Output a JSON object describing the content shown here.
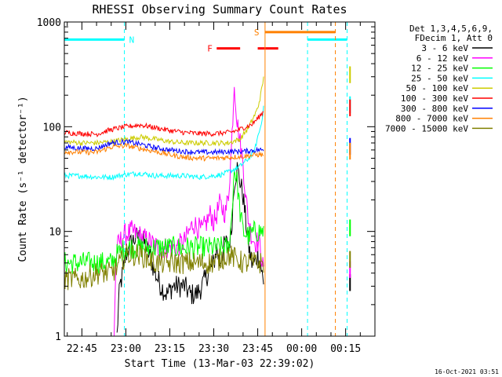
{
  "chart_data": {
    "type": "line",
    "title": "RHESSI Observing Summary Count Rates",
    "xlabel": "Start Time (13-Mar-03 22:39:02)",
    "ylabel": "Count Rate (s⁻¹ detector⁻¹)",
    "y_scale": "log",
    "ylim": [
      1,
      1000
    ],
    "xlim_minutes": [
      -6,
      100
    ],
    "x_ticks": [
      {
        "t": 0,
        "label": "22:45"
      },
      {
        "t": 15,
        "label": "23:00"
      },
      {
        "t": 30,
        "label": "23:15"
      },
      {
        "t": 45,
        "label": "23:30"
      },
      {
        "t": 60,
        "label": "23:45"
      },
      {
        "t": 75,
        "label": "00:00"
      },
      {
        "t": 90,
        "label": "00:15"
      }
    ],
    "y_ticks": [
      {
        "v": 1,
        "label": "1"
      },
      {
        "v": 10,
        "label": "10"
      },
      {
        "v": 100,
        "label": "100"
      },
      {
        "v": 1000,
        "label": "1000"
      }
    ],
    "legend_header": [
      "Det 1,3,4,5,6,9,",
      "FDecim 1, Att 0"
    ],
    "series": [
      {
        "name": "3 - 6 keV",
        "color": "#000000",
        "points": [
          [
            12,
            1
          ],
          [
            12.5,
            2
          ],
          [
            13,
            3
          ],
          [
            14,
            4
          ],
          [
            15,
            6
          ],
          [
            17,
            8
          ],
          [
            19,
            9
          ],
          [
            21,
            8
          ],
          [
            23,
            6
          ],
          [
            25,
            4
          ],
          [
            27,
            3
          ],
          [
            29,
            2.5
          ],
          [
            31,
            3
          ],
          [
            33,
            3
          ],
          [
            35,
            3
          ],
          [
            37,
            2.5
          ],
          [
            39,
            2.5
          ],
          [
            41,
            3
          ],
          [
            43,
            4
          ],
          [
            45,
            5
          ],
          [
            46,
            7
          ],
          [
            47,
            5
          ],
          [
            49,
            8
          ],
          [
            50,
            7
          ],
          [
            51,
            10
          ],
          [
            52,
            30
          ],
          [
            53,
            40
          ],
          [
            54,
            30
          ],
          [
            55,
            22
          ],
          [
            56,
            12
          ],
          [
            57,
            7
          ],
          [
            58,
            5
          ],
          [
            59,
            5
          ],
          [
            60,
            6
          ],
          [
            61,
            5
          ],
          [
            62,
            3
          ]
        ]
      },
      {
        "name": "6 - 12 keV",
        "color": "#ff00ff",
        "points": [
          [
            11,
            1
          ],
          [
            11.5,
            4
          ],
          [
            12,
            7
          ],
          [
            14,
            9
          ],
          [
            17,
            10
          ],
          [
            20,
            9
          ],
          [
            23,
            8
          ],
          [
            26,
            7
          ],
          [
            29,
            7
          ],
          [
            32,
            7
          ],
          [
            35,
            8
          ],
          [
            38,
            12
          ],
          [
            41,
            10
          ],
          [
            43,
            13
          ],
          [
            44,
            15
          ],
          [
            45,
            12
          ],
          [
            47,
            18
          ],
          [
            49,
            15
          ],
          [
            50,
            22
          ],
          [
            51,
            60
          ],
          [
            52,
            270
          ],
          [
            53,
            110
          ],
          [
            54,
            70
          ],
          [
            55,
            45
          ],
          [
            56,
            20
          ],
          [
            57,
            12
          ],
          [
            58,
            9
          ],
          [
            59,
            8
          ],
          [
            60,
            8
          ],
          [
            61,
            7
          ],
          [
            62,
            4
          ]
        ]
      },
      {
        "name": "12 - 25 keV",
        "color": "#00ff00",
        "points": [
          [
            -6,
            5
          ],
          [
            0,
            5
          ],
          [
            5,
            5
          ],
          [
            10,
            5
          ],
          [
            12,
            6
          ],
          [
            15,
            7
          ],
          [
            20,
            7
          ],
          [
            25,
            7
          ],
          [
            30,
            7
          ],
          [
            35,
            7
          ],
          [
            40,
            7
          ],
          [
            45,
            7
          ],
          [
            50,
            7
          ],
          [
            51,
            12
          ],
          [
            52,
            40
          ],
          [
            53,
            30
          ],
          [
            54,
            15
          ],
          [
            55,
            10
          ],
          [
            57,
            9
          ],
          [
            59,
            10
          ],
          [
            61,
            10
          ],
          [
            62,
            10
          ]
        ]
      },
      {
        "name": "25 - 50 keV",
        "color": "#00ffff",
        "points": [
          [
            -6,
            34
          ],
          [
            0,
            34
          ],
          [
            5,
            33
          ],
          [
            10,
            33
          ],
          [
            15,
            35
          ],
          [
            20,
            36
          ],
          [
            25,
            34
          ],
          [
            30,
            34
          ],
          [
            35,
            34
          ],
          [
            40,
            33
          ],
          [
            45,
            34
          ],
          [
            48,
            35
          ],
          [
            51,
            38
          ],
          [
            54,
            42
          ],
          [
            57,
            50
          ],
          [
            59,
            60
          ],
          [
            60,
            80
          ],
          [
            61,
            100
          ],
          [
            62,
            150
          ]
        ]
      },
      {
        "name": "50 - 100 keV",
        "color": "#cccc00",
        "points": [
          [
            -6,
            72
          ],
          [
            0,
            70
          ],
          [
            5,
            70
          ],
          [
            10,
            72
          ],
          [
            15,
            76
          ],
          [
            20,
            80
          ],
          [
            25,
            76
          ],
          [
            30,
            72
          ],
          [
            35,
            70
          ],
          [
            40,
            70
          ],
          [
            45,
            70
          ],
          [
            50,
            70
          ],
          [
            54,
            76
          ],
          [
            57,
            100
          ],
          [
            59,
            130
          ],
          [
            60,
            150
          ],
          [
            61,
            200
          ],
          [
            62,
            290
          ]
        ]
      },
      {
        "name": "100 - 300 keV",
        "color": "#ff0000",
        "points": [
          [
            -6,
            88
          ],
          [
            0,
            86
          ],
          [
            5,
            85
          ],
          [
            10,
            94
          ],
          [
            15,
            100
          ],
          [
            20,
            104
          ],
          [
            25,
            98
          ],
          [
            30,
            92
          ],
          [
            35,
            88
          ],
          [
            40,
            86
          ],
          [
            45,
            86
          ],
          [
            50,
            88
          ],
          [
            53,
            92
          ],
          [
            56,
            100
          ],
          [
            58,
            105
          ],
          [
            60,
            120
          ],
          [
            62,
            140
          ]
        ]
      },
      {
        "name": "300 - 800 keV",
        "color": "#0000ff",
        "points": [
          [
            -6,
            64
          ],
          [
            0,
            62
          ],
          [
            5,
            62
          ],
          [
            10,
            70
          ],
          [
            15,
            72
          ],
          [
            20,
            68
          ],
          [
            25,
            63
          ],
          [
            30,
            60
          ],
          [
            35,
            58
          ],
          [
            40,
            57
          ],
          [
            45,
            57
          ],
          [
            50,
            58
          ],
          [
            55,
            58
          ],
          [
            60,
            60
          ],
          [
            62,
            60
          ]
        ]
      },
      {
        "name": "800 - 7000 keV",
        "color": "#ff8000",
        "points": [
          [
            -6,
            58
          ],
          [
            0,
            57
          ],
          [
            5,
            57
          ],
          [
            10,
            64
          ],
          [
            15,
            66
          ],
          [
            20,
            62
          ],
          [
            25,
            58
          ],
          [
            30,
            54
          ],
          [
            35,
            51
          ],
          [
            40,
            50
          ],
          [
            45,
            50
          ],
          [
            50,
            51
          ],
          [
            55,
            52
          ],
          [
            60,
            54
          ],
          [
            62,
            54
          ]
        ]
      },
      {
        "name": "7000 - 15000 keV",
        "color": "#808000",
        "points": [
          [
            -6,
            3.5
          ],
          [
            0,
            3.5
          ],
          [
            5,
            4
          ],
          [
            10,
            4
          ],
          [
            12,
            4.5
          ],
          [
            15,
            6
          ],
          [
            20,
            6
          ],
          [
            25,
            5
          ],
          [
            30,
            5
          ],
          [
            35,
            5
          ],
          [
            40,
            5
          ],
          [
            45,
            5
          ],
          [
            50,
            6
          ],
          [
            55,
            5
          ],
          [
            60,
            5
          ],
          [
            62,
            5
          ]
        ]
      }
    ],
    "flags": [
      {
        "label": "N",
        "color": "#00ffff",
        "y_level": 680,
        "segments": [
          [
            -6,
            14.5
          ],
          [
            77,
            90.5
          ]
        ],
        "boundaries": [
          14.5,
          77,
          90.5
        ]
      },
      {
        "label": "F",
        "color": "#ff0000",
        "y_level": 560,
        "segments": [
          [
            46,
            54
          ],
          [
            60,
            67
          ]
        ],
        "boundaries": []
      },
      {
        "label": "S",
        "color": "#ff8000",
        "y_level": 800,
        "segments": [
          [
            62.5,
            86.5
          ]
        ],
        "boundaries": [
          62.5,
          86.5
        ]
      }
    ],
    "legend_placement": "right",
    "grid": false
  },
  "footer": {
    "timestamp": "16-Oct-2021 03:51"
  }
}
